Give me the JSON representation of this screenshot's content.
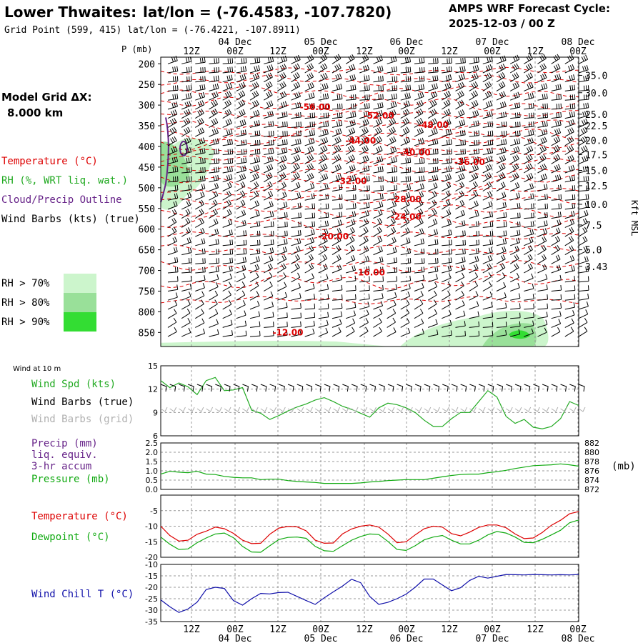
{
  "header": {
    "location": "Lower Thwaites:",
    "latlon": "lat/lon = (-76.4583, -107.7820)",
    "grid_point": "Grid Point (599, 415) lat/lon = (-76.4221, -107.8911)",
    "forecast_label": "AMPS WRF Forecast Cycle:",
    "cycle": "2025-12-03 / 00  Z",
    "model_grid_label": "Model Grid ΔX:",
    "model_grid_value": "8.000 km"
  },
  "time_axis": {
    "hours": [
      "12Z",
      "00Z",
      "12Z",
      "00Z",
      "12Z",
      "00Z",
      "12Z",
      "00Z",
      "12Z",
      "00Z"
    ],
    "dates": [
      {
        "hour_index": 1,
        "label": "04 Dec"
      },
      {
        "hour_index": 3,
        "label": "05 Dec"
      },
      {
        "hour_index": 5,
        "label": "06 Dec"
      },
      {
        "hour_index": 7,
        "label": "07 Dec"
      },
      {
        "hour_index": 9,
        "label": "08 Dec"
      }
    ]
  },
  "colors": {
    "temperature": "#dd0000",
    "rh": "#22aa22",
    "cloud": "#662288",
    "wind": "#000000",
    "wind_grid": "#b0b0b0",
    "precip": "#662288",
    "pressure": "#11aa11",
    "dewpoint": "#11aa11",
    "windchill": "#1111aa",
    "rh70": "#ccf5cc",
    "rh80": "#99e099",
    "rh90": "#33dd33"
  },
  "legend": {
    "temperature": "Temperature (°C)",
    "rh": "RH (%, WRT liq. wat.)",
    "cloud": "Cloud/Precip Outline",
    "wind_barbs": "Wind Barbs (kts) (true)",
    "rh_levels": [
      "RH > 70%",
      "RH > 80%",
      "RH > 90%"
    ]
  },
  "chart_data": [
    {
      "type": "heatmap",
      "title": "Lower Thwaites cross-section",
      "ylabel": "P (mb)",
      "y2label": "Kft MSL",
      "pressure_ticks": [
        200,
        250,
        300,
        350,
        400,
        450,
        500,
        550,
        600,
        650,
        700,
        750,
        800,
        850
      ],
      "height_ticks": [
        "35.0",
        "30.0",
        "25.0",
        "22.5",
        "20.0",
        "17.5",
        "15.0",
        "12.5",
        "10.0",
        "7.5",
        "5.0",
        "3.43"
      ],
      "height_tick_pressures": [
        228,
        270,
        322,
        350,
        385,
        420,
        458,
        495,
        540,
        590,
        650,
        690
      ],
      "temperature_contour_labels": [
        {
          "value": "-56.00",
          "t": 17,
          "p": 305
        },
        {
          "value": "-52.00",
          "t": 24,
          "p": 326
        },
        {
          "value": "-48.00",
          "t": 30,
          "p": 348
        },
        {
          "value": "-44.00",
          "t": 22,
          "p": 386
        },
        {
          "value": "-40.00",
          "t": 28,
          "p": 415
        },
        {
          "value": "-36.00",
          "t": 34,
          "p": 438
        },
        {
          "value": "-32.00",
          "t": 21,
          "p": 484
        },
        {
          "value": "-28.00",
          "t": 27,
          "p": 528
        },
        {
          "value": "-24.00",
          "t": 27,
          "p": 570
        },
        {
          "value": "-20.00",
          "t": 19,
          "p": 618
        },
        {
          "value": "-16.00",
          "t": 23,
          "p": 705
        },
        {
          "value": "-12.00",
          "t": 14,
          "p": 850
        }
      ]
    },
    {
      "type": "line",
      "title": "Wind at 10 m",
      "series": [
        {
          "name": "Wind Spd (kts)",
          "values": [
            13.1,
            12.2,
            12.8,
            12.3,
            11.3,
            13.1,
            13.5,
            11.8,
            11.9,
            12.2,
            9.3,
            8.9,
            8.1,
            8.6,
            9.2,
            9.7,
            10.1,
            10.6,
            10.9,
            10.4,
            9.8,
            9.4,
            8.9,
            8.4,
            9.6,
            10.2,
            10.0,
            9.6,
            9.0,
            8.0,
            7.2,
            7.2,
            8.2,
            9.0,
            9.0,
            10.4,
            11.8,
            11.0,
            8.5,
            7.6,
            8.1,
            7.1,
            6.9,
            7.2,
            8.2,
            10.4,
            9.9
          ]
        }
      ],
      "ylim": [
        6,
        15
      ],
      "yticks": [
        6,
        9,
        12,
        15
      ]
    },
    {
      "type": "line",
      "series": [
        {
          "name": "Precip (mm)",
          "values": []
        },
        {
          "name": "Pressure (mb)",
          "values": [
            875.3,
            875.9,
            875.7,
            875.6,
            875.9,
            875.3,
            875.2,
            874.8,
            874.6,
            874.5,
            874.5,
            874.1,
            874.2,
            874.2,
            873.9,
            873.7,
            873.6,
            873.5,
            873.3,
            873.3,
            873.3,
            873.3,
            873.4,
            873.6,
            873.7,
            873.9,
            874.0,
            874.1,
            874.1,
            874.1,
            874.4,
            874.7,
            875.0,
            875.2,
            875.3,
            875.3,
            875.6,
            875.8,
            876.1,
            876.5,
            876.8,
            877.1,
            877.2,
            877.3,
            877.5,
            877.3,
            877.0
          ]
        }
      ],
      "ylim": [
        0,
        2.5
      ],
      "yticks": [
        "0.0",
        "0.5",
        "1.0",
        "1.5",
        "2.0",
        "2.5"
      ],
      "y2lim": [
        872,
        882
      ],
      "y2ticks": [
        "872",
        "874",
        "876",
        "878",
        "880",
        "882"
      ],
      "y2label": "(mb)"
    },
    {
      "type": "line",
      "series": [
        {
          "name": "Temperature (°C)",
          "values": [
            -10.0,
            -13.0,
            -14.8,
            -14.5,
            -12.6,
            -11.6,
            -10.3,
            -10.8,
            -12.3,
            -14.5,
            -15.6,
            -15.5,
            -12.6,
            -10.6,
            -10.1,
            -10.2,
            -11.5,
            -14.5,
            -15.5,
            -15.4,
            -12.5,
            -10.9,
            -10.0,
            -9.6,
            -10.3,
            -12.5,
            -15.3,
            -15.0,
            -12.8,
            -10.8,
            -10.0,
            -10.3,
            -12.4,
            -13.1,
            -11.9,
            -10.4,
            -9.6,
            -9.6,
            -10.5,
            -12.5,
            -14.0,
            -13.8,
            -12.0,
            -9.7,
            -8.1,
            -6.0,
            -5.3
          ],
          "xlabel": "",
          "ylabel": ""
        },
        {
          "name": "Dewpoint (°C)",
          "values": [
            -13.5,
            -15.8,
            -17.5,
            -17.3,
            -15.3,
            -13.8,
            -12.5,
            -12.2,
            -13.7,
            -16.5,
            -18.3,
            -18.4,
            -16.3,
            -14.3,
            -13.6,
            -13.5,
            -13.9,
            -16.5,
            -17.9,
            -18.1,
            -16.3,
            -14.5,
            -13.3,
            -12.5,
            -12.7,
            -14.9,
            -17.5,
            -17.8,
            -16.3,
            -14.4,
            -13.5,
            -13.0,
            -14.5,
            -15.7,
            -15.7,
            -14.5,
            -12.8,
            -11.7,
            -12.2,
            -13.5,
            -15.2,
            -15.3,
            -14.2,
            -12.8,
            -11.3,
            -8.9,
            -8.0
          ]
        }
      ],
      "ylim": [
        -20,
        0
      ],
      "yticks": [
        -20,
        -15,
        -10,
        -5
      ]
    },
    {
      "type": "line",
      "series": [
        {
          "name": "Wind Chill T (°C)",
          "values": [
            -25.5,
            -28.5,
            -31.0,
            -29.5,
            -26.5,
            -21.0,
            -20.0,
            -20.5,
            -25.8,
            -27.8,
            -25.0,
            -22.7,
            -22.9,
            -22.3,
            -22.2,
            -24.0,
            -25.8,
            -27.5,
            -24.6,
            -22.0,
            -19.5,
            -16.5,
            -18.0,
            -24.0,
            -27.5,
            -26.6,
            -25.0,
            -23.0,
            -20.0,
            -16.4,
            -16.4,
            -19.0,
            -21.5,
            -20.2,
            -17.0,
            -15.2,
            -16.0,
            -15.2,
            -14.4,
            -14.5,
            -14.6,
            -14.4,
            -14.5,
            -14.6,
            -14.5,
            -14.6,
            -14.4
          ]
        }
      ],
      "ylim": [
        -35,
        -10
      ],
      "yticks": [
        -35,
        -30,
        -25,
        -20,
        -15,
        -10
      ]
    }
  ],
  "panels": {
    "wind10_title": "Wind at 10 m",
    "wind_spd": "Wind Spd (kts)",
    "wind_barbs_true": "Wind Barbs (true)",
    "wind_barbs_grid": "Wind Barbs (grid)",
    "precip_l1": "Precip (mm)",
    "precip_l2": "liq. equiv.",
    "precip_l3": "3-hr accum",
    "pressure": "Pressure (mb)",
    "pressure_unit": "(mb)",
    "temperature": "Temperature (°C)",
    "dewpoint": "Dewpoint (°C)",
    "windchill": "Wind Chill T (°C)"
  }
}
